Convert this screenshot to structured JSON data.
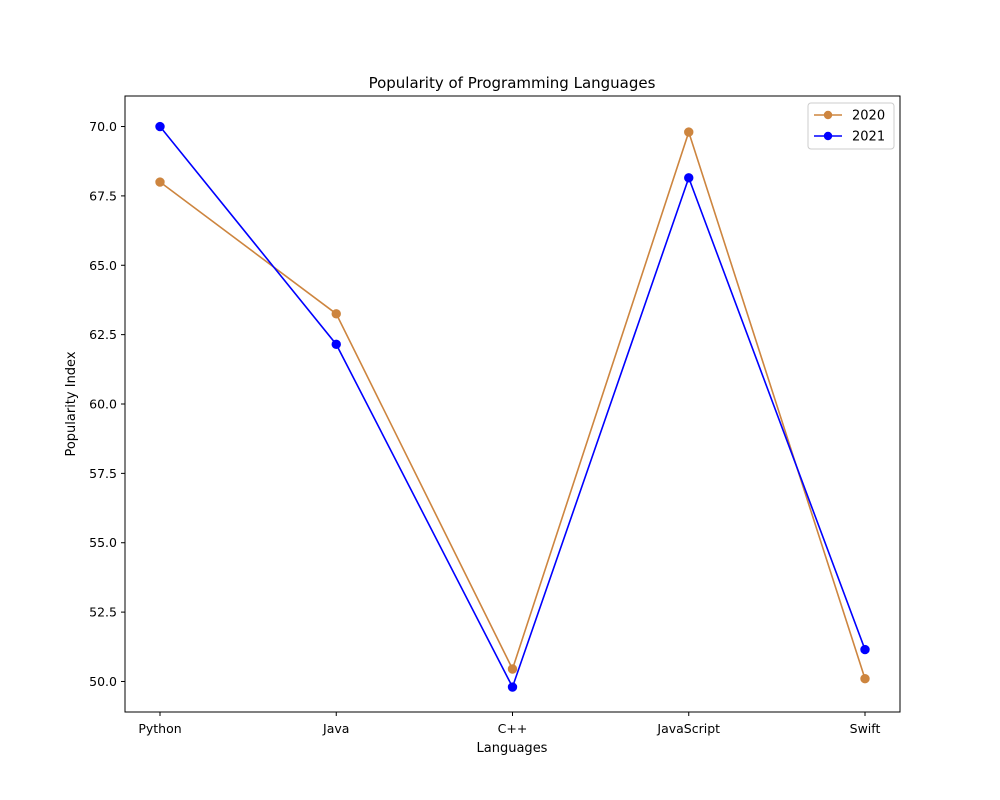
{
  "chart_data": {
    "type": "line",
    "title": "Popularity of Programming Languages",
    "xlabel": "Languages",
    "ylabel": "Popularity Index",
    "categories": [
      "Python",
      "Java",
      "C++",
      "JavaScript",
      "Swift"
    ],
    "ylim": [
      48.9,
      71.1
    ],
    "yticks": [
      50.0,
      52.5,
      55.0,
      57.5,
      60.0,
      62.5,
      65.0,
      67.5,
      70.0
    ],
    "ytick_labels": [
      "50.0",
      "52.5",
      "55.0",
      "57.5",
      "60.0",
      "62.5",
      "65.0",
      "67.5",
      "70.0"
    ],
    "grid": false,
    "legend_position": "top-right",
    "series": [
      {
        "name": "2020",
        "color": "#cd853f",
        "marker": "circle",
        "values": [
          68.0,
          63.25,
          50.45,
          69.8,
          50.1
        ]
      },
      {
        "name": "2021",
        "color": "#0000ff",
        "marker": "circle",
        "values": [
          70.0,
          62.15,
          49.8,
          68.15,
          51.15
        ]
      }
    ]
  }
}
